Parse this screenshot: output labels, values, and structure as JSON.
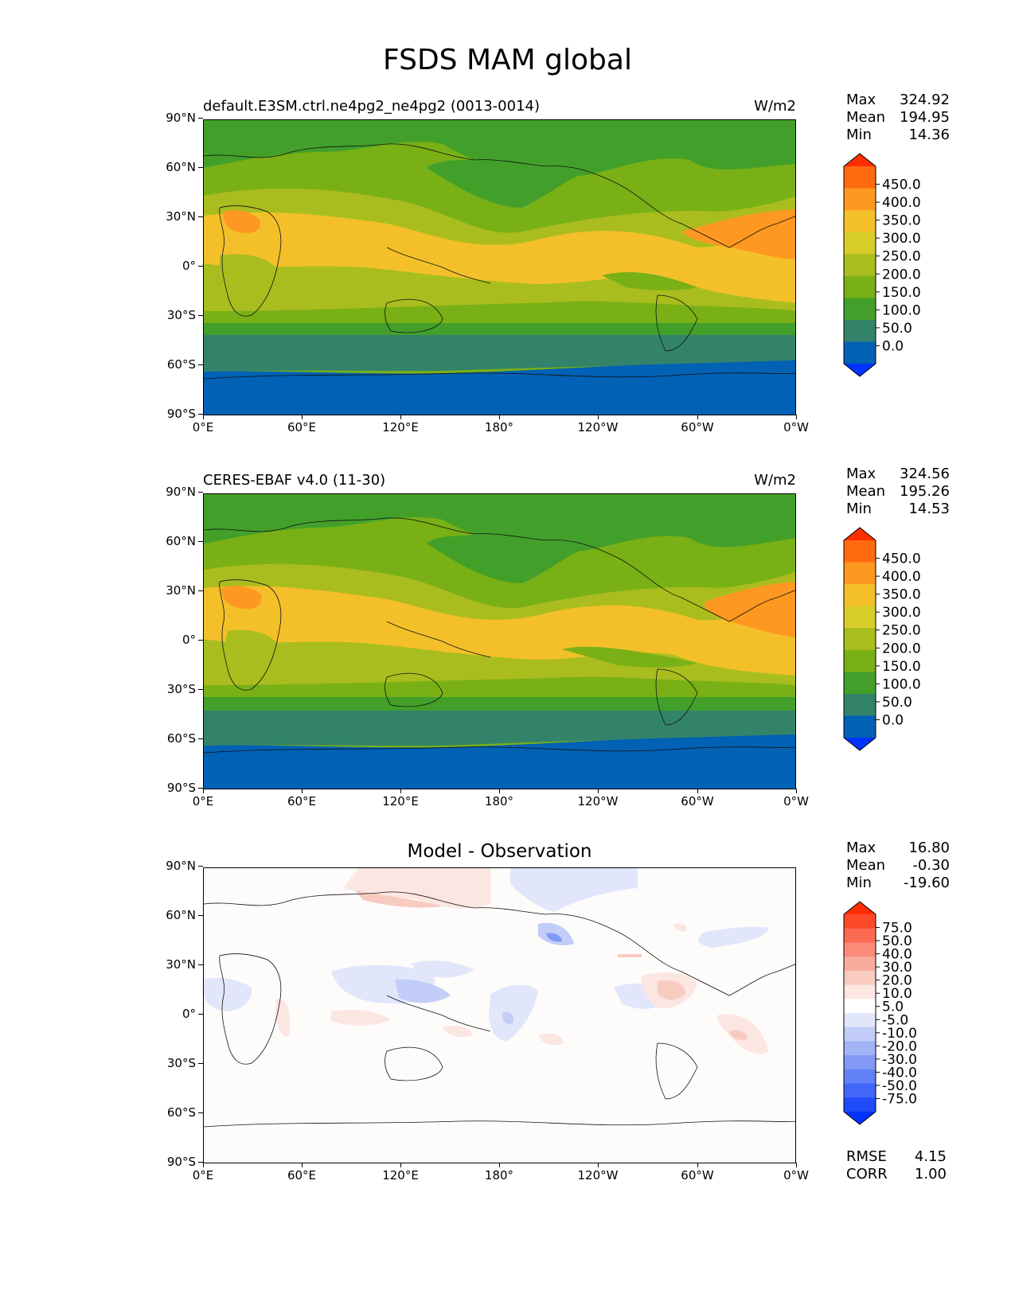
{
  "figure": {
    "title": "FSDS MAM global"
  },
  "axes": {
    "lat_labels": [
      "90°N",
      "60°N",
      "30°N",
      "0°",
      "30°S",
      "60°S",
      "90°S"
    ],
    "lon_labels": [
      "0°E",
      "60°E",
      "120°E",
      "180°",
      "120°W",
      "60°W",
      "0°W"
    ]
  },
  "panels": [
    {
      "title_left": "default.E3SM.ctrl.ne4pg2_ne4pg2 (0013-0014)",
      "title_right": "W/m2",
      "stats": {
        "max_label": "Max",
        "max": "324.92",
        "mean_label": "Mean",
        "mean": "194.95",
        "min_label": "Min",
        "min": "14.36"
      },
      "colorbar": {
        "labels": [
          "450.0",
          "400.0",
          "350.0",
          "300.0",
          "250.0",
          "200.0",
          "150.0",
          "100.0",
          "50.0",
          "0.0"
        ],
        "colors": [
          "#ff2e00",
          "#ff6a10",
          "#ff9820",
          "#f3c02a",
          "#d8cc2a",
          "#aabd1e",
          "#79b016",
          "#42a02a",
          "#33836a",
          "#0061b5",
          "#0033ff"
        ]
      }
    },
    {
      "title_left": "CERES-EBAF v4.0 (11-30)",
      "title_right": "W/m2",
      "stats": {
        "max_label": "Max",
        "max": "324.56",
        "mean_label": "Mean",
        "mean": "195.26",
        "min_label": "Min",
        "min": "14.53"
      },
      "colorbar": {
        "labels": [
          "450.0",
          "400.0",
          "350.0",
          "300.0",
          "250.0",
          "200.0",
          "150.0",
          "100.0",
          "50.0",
          "0.0"
        ],
        "colors": [
          "#ff2e00",
          "#ff6a10",
          "#ff9820",
          "#f3c02a",
          "#d8cc2a",
          "#aabd1e",
          "#79b016",
          "#42a02a",
          "#33836a",
          "#0061b5",
          "#0033ff"
        ]
      }
    },
    {
      "title_center": "Model - Observation",
      "stats": {
        "max_label": "Max",
        "max": "16.80",
        "mean_label": "Mean",
        "mean": "-0.30",
        "min_label": "Min",
        "min": "-19.60"
      },
      "colorbar": {
        "labels": [
          "75.0",
          "50.0",
          "40.0",
          "30.0",
          "20.0",
          "10.0",
          "5.0",
          "-5.0",
          "-10.0",
          "-20.0",
          "-30.0",
          "-40.0",
          "-50.0",
          "-75.0"
        ],
        "colors": [
          "#ff2e00",
          "#ff4a2a",
          "#fd6a52",
          "#fb8b78",
          "#f9ab9d",
          "#f8cbc1",
          "#fbe6e2",
          "#ffffff",
          "#e2e6fb",
          "#c2cdf8",
          "#a2b3f6",
          "#8299f5",
          "#6280f6",
          "#4266f8",
          "#1f4bfb",
          "#0033ff"
        ]
      },
      "metrics": {
        "rmse_label": "RMSE",
        "rmse": "4.15",
        "corr_label": "CORR",
        "corr": "1.00"
      }
    }
  ]
}
